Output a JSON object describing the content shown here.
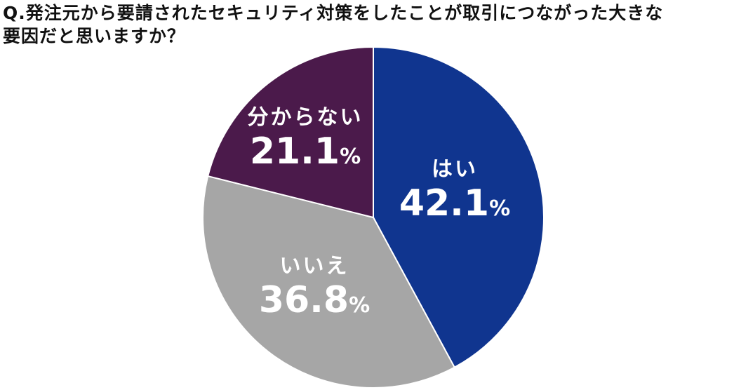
{
  "title": {
    "line1": "Q.発注元から要請されたセキュリティ対策をしたことが取引につながった大きな",
    "line2": "要因だと思いますか？"
  },
  "slices": [
    {
      "label": "はい",
      "value": "42.1",
      "unit": "%",
      "color": "#10358F"
    },
    {
      "label": "いいえ",
      "value": "36.8",
      "unit": "%",
      "color": "#A6A6A6"
    },
    {
      "label": "分からない",
      "value": "21.1",
      "unit": "%",
      "color": "#4B1A4B"
    }
  ],
  "chart_data": {
    "type": "pie",
    "title": "Q.発注元から要請されたセキュリティ対策をしたことが取引につながった大きな要因だと思いますか？",
    "categories": [
      "はい",
      "いいえ",
      "分からない"
    ],
    "values": [
      42.1,
      36.8,
      21.1
    ],
    "unit": "%",
    "colors": [
      "#10358F",
      "#A6A6A6",
      "#4B1A4B"
    ],
    "start_angle": "12 o'clock, clockwise",
    "legend": "none (labels inside slices)"
  }
}
